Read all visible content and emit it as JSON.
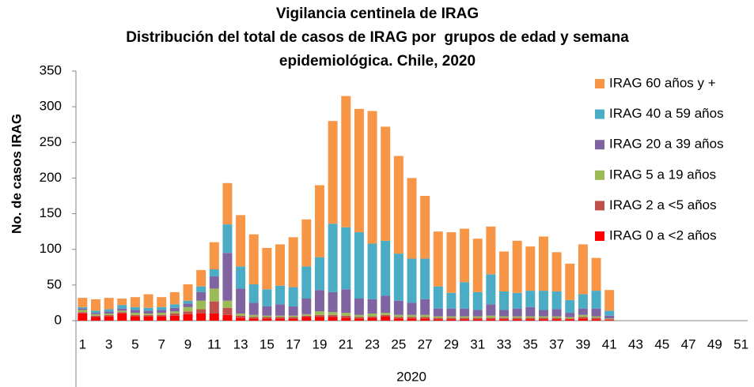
{
  "chart_data": {
    "type": "stacked_bar",
    "title": [
      "Vigilancia centinela de IRAG",
      "Distribución del total de casos de IRAG por  grupos de edad y semana",
      "epidemiológica. Chile, 2020"
    ],
    "y_label": "No. de casos IRAG",
    "x_group_label": "2020",
    "categories": [
      1,
      null,
      3,
      null,
      5,
      null,
      7,
      null,
      9,
      null,
      11,
      null,
      13,
      null,
      15,
      null,
      17,
      null,
      19,
      null,
      21,
      null,
      23,
      null,
      25,
      null,
      27,
      null,
      29,
      null,
      31,
      null,
      33,
      null,
      35,
      null,
      37,
      null,
      39,
      null,
      41,
      null,
      43,
      null,
      45,
      null,
      47,
      null,
      49,
      null,
      51
    ],
    "ylim": [
      0,
      350
    ],
    "yticks": [
      0,
      50,
      100,
      150,
      200,
      250,
      300,
      350
    ],
    "grid": false,
    "legend": "right",
    "series": [
      {
        "name": "IRAG 0 a <2 años",
        "color": "#ff0000",
        "values": [
          10,
          5,
          6,
          10,
          6,
          6,
          6,
          7,
          9,
          10,
          10,
          8,
          4,
          3,
          3,
          3,
          3,
          5,
          5,
          5,
          4,
          3,
          4,
          6,
          3,
          3,
          3,
          2,
          2,
          2,
          2,
          2,
          2,
          2,
          2,
          2,
          2,
          2,
          3,
          2,
          1,
          null,
          null,
          null,
          null,
          null,
          null,
          null,
          null,
          null,
          null
        ]
      },
      {
        "name": "IRAG 2 a <5 años",
        "color": "#c0504d",
        "values": [
          2,
          2,
          2,
          2,
          2,
          2,
          2,
          3,
          4,
          6,
          17,
          10,
          3,
          2,
          2,
          2,
          2,
          2,
          3,
          3,
          3,
          2,
          2,
          2,
          2,
          2,
          2,
          2,
          2,
          2,
          2,
          2,
          2,
          2,
          2,
          2,
          2,
          1,
          2,
          2,
          1,
          null,
          null,
          null,
          null,
          null,
          null,
          null,
          null,
          null,
          null
        ]
      },
      {
        "name": "IRAG 5 a 19 años",
        "color": "#9bbb59",
        "values": [
          3,
          2,
          2,
          2,
          3,
          2,
          3,
          3,
          6,
          12,
          18,
          10,
          3,
          3,
          2,
          2,
          2,
          2,
          5,
          4,
          4,
          3,
          4,
          3,
          3,
          3,
          3,
          2,
          2,
          2,
          2,
          3,
          2,
          2,
          2,
          2,
          2,
          2,
          3,
          2,
          1,
          null,
          null,
          null,
          null,
          null,
          null,
          null,
          null,
          null,
          null
        ]
      },
      {
        "name": "IRAG 20 a 39 años",
        "color": "#8064a2",
        "values": [
          2,
          2,
          3,
          3,
          4,
          4,
          4,
          5,
          5,
          12,
          17,
          67,
          35,
          17,
          13,
          16,
          13,
          22,
          30,
          28,
          33,
          23,
          20,
          24,
          20,
          17,
          22,
          11,
          11,
          11,
          9,
          16,
          9,
          11,
          13,
          9,
          10,
          6,
          9,
          11,
          4,
          null,
          null,
          null,
          null,
          null,
          null,
          null,
          null,
          null,
          null
        ]
      },
      {
        "name": "IRAG 40 a 59 años",
        "color": "#4bacc6",
        "values": [
          2,
          3,
          3,
          5,
          4,
          4,
          4,
          5,
          4,
          8,
          10,
          40,
          31,
          26,
          24,
          26,
          27,
          45,
          46,
          96,
          87,
          93,
          78,
          77,
          66,
          62,
          57,
          31,
          22,
          37,
          25,
          42,
          26,
          22,
          23,
          27,
          25,
          18,
          20,
          25,
          7,
          null,
          null,
          null,
          null,
          null,
          null,
          null,
          null,
          null,
          null
        ]
      },
      {
        "name": "IRAG 60 años y +",
        "color": "#f79646",
        "values": [
          13,
          16,
          16,
          9,
          14,
          19,
          14,
          17,
          23,
          23,
          38,
          58,
          72,
          70,
          58,
          58,
          70,
          66,
          101,
          144,
          184,
          173,
          186,
          160,
          137,
          113,
          88,
          77,
          85,
          75,
          75,
          67,
          56,
          73,
          62,
          76,
          55,
          51,
          70,
          46,
          29,
          null,
          null,
          null,
          null,
          null,
          null,
          null,
          null,
          null,
          null
        ]
      }
    ]
  }
}
